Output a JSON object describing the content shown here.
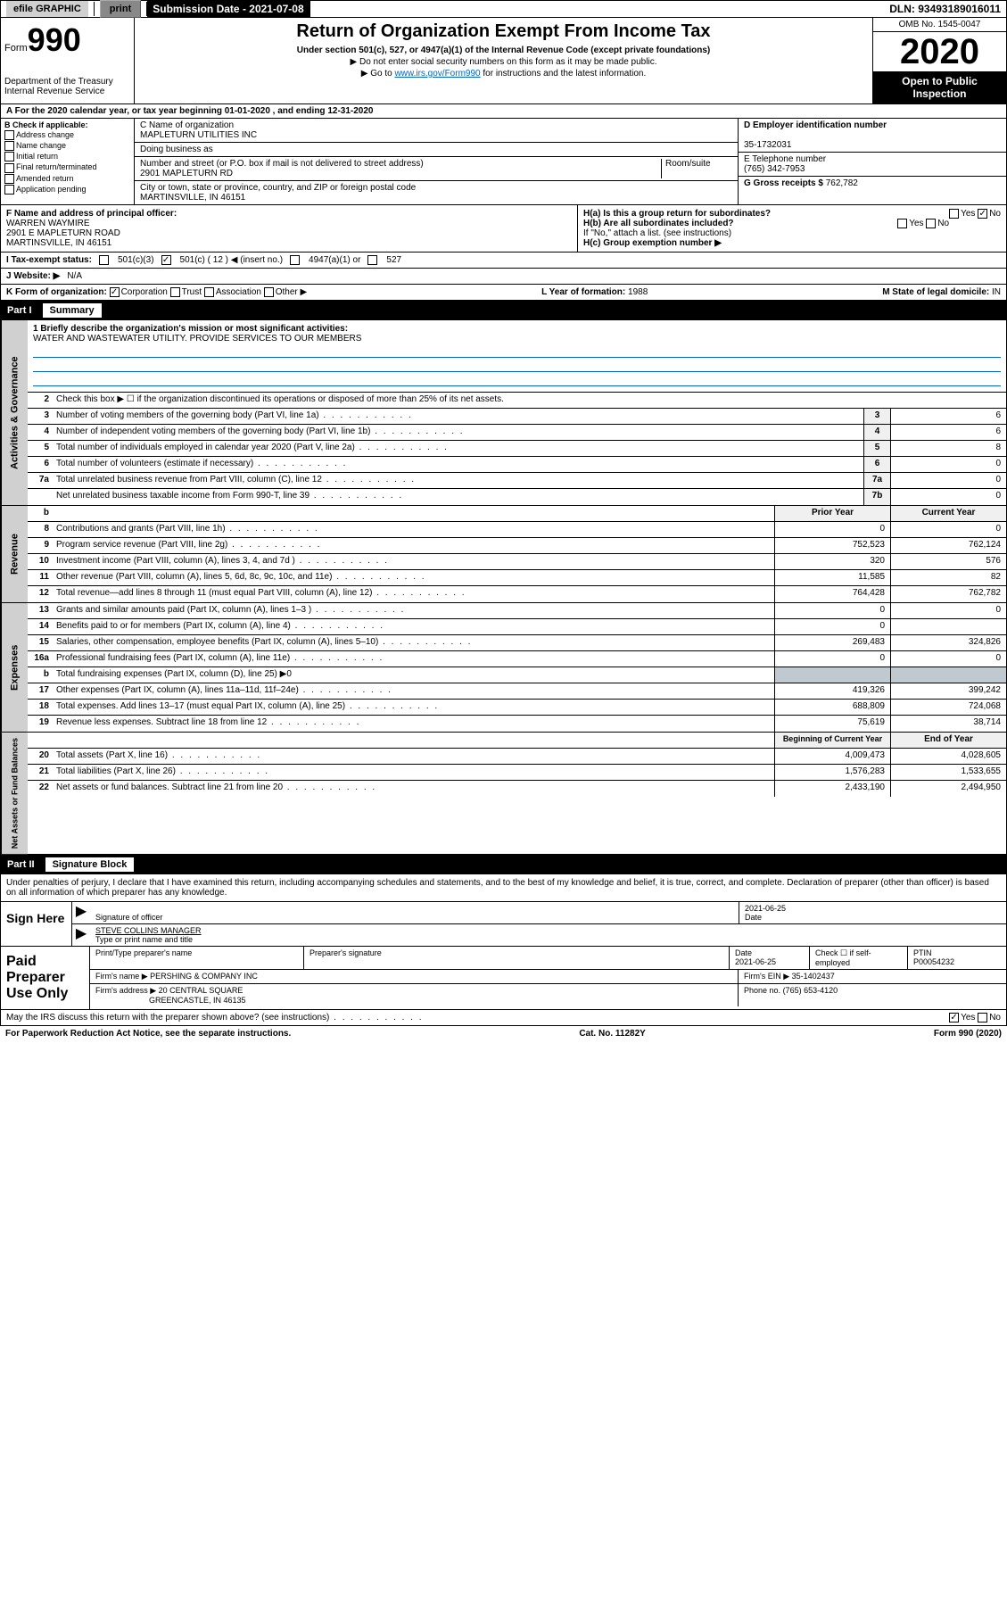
{
  "header": {
    "efile": "efile GRAPHIC",
    "print": "print",
    "submission": "Submission Date - 2021-07-08",
    "dln": "DLN: 93493189016011"
  },
  "form": {
    "label": "Form",
    "number": "990",
    "dept1": "Department of the Treasury",
    "dept2": "Internal Revenue Service",
    "title": "Return of Organization Exempt From Income Tax",
    "subtitle": "Under section 501(c), 527, or 4947(a)(1) of the Internal Revenue Code (except private foundations)",
    "note1": "▶ Do not enter social security numbers on this form as it may be made public.",
    "note2_pre": "▶ Go to ",
    "note2_link": "www.irs.gov/Form990",
    "note2_post": " for instructions and the latest information.",
    "omb": "OMB No. 1545-0047",
    "year": "2020",
    "open": "Open to Public Inspection"
  },
  "a_line": "A For the 2020 calendar year, or tax year beginning 01-01-2020    , and ending 12-31-2020",
  "b": {
    "title": "B Check if applicable:",
    "opts": [
      "Address change",
      "Name change",
      "Initial return",
      "Final return/terminated",
      "Amended return",
      "Application pending"
    ]
  },
  "c": {
    "name_label": "C Name of organization",
    "name": "MAPLETURN UTILITIES INC",
    "dba_label": "Doing business as",
    "dba": "",
    "addr_label": "Number and street (or P.O. box if mail is not delivered to street address)",
    "room_label": "Room/suite",
    "addr": "2901 MAPLETURN RD",
    "city_label": "City or town, state or province, country, and ZIP or foreign postal code",
    "city": "MARTINSVILLE, IN  46151"
  },
  "d": {
    "label": "D Employer identification number",
    "val": "35-1732031"
  },
  "e": {
    "label": "E Telephone number",
    "val": "(765) 342-7953"
  },
  "g": {
    "label": "G Gross receipts $",
    "val": "762,782"
  },
  "f": {
    "label": "F  Name and address of principal officer:",
    "name": "WARREN WAYMIRE",
    "addr1": "2901 E MAPLETURN ROAD",
    "addr2": "MARTINSVILLE, IN  46151"
  },
  "h": {
    "a_label": "H(a)  Is this a group return for subordinates?",
    "a_yes": "Yes",
    "a_no": "No",
    "b_label": "H(b)  Are all subordinates included?",
    "b_note": "If \"No,\" attach a list. (see instructions)",
    "c_label": "H(c)  Group exemption number ▶"
  },
  "i": {
    "label": "I   Tax-exempt status:",
    "opts": [
      "501(c)(3)",
      "501(c) ( 12 ) ◀ (insert no.)",
      "4947(a)(1) or",
      "527"
    ]
  },
  "j": {
    "label": "J   Website: ▶",
    "val": "N/A"
  },
  "k": {
    "label": "K Form of organization:",
    "opts": [
      "Corporation",
      "Trust",
      "Association",
      "Other ▶"
    ],
    "l_label": "L Year of formation:",
    "l_val": "1988",
    "m_label": "M State of legal domicile:",
    "m_val": "IN"
  },
  "part1": {
    "label": "Part I",
    "title": "Summary"
  },
  "gov": {
    "side": "Activities & Governance",
    "l1_label": "1  Briefly describe the organization's mission or most significant activities:",
    "l1_text": "WATER AND WASTEWATER UTILITY. PROVIDE SERVICES TO OUR MEMBERS",
    "l2": "Check this box ▶ ☐  if the organization discontinued its operations or disposed of more than 25% of its net assets.",
    "lines": [
      {
        "n": "3",
        "t": "Number of voting members of the governing body (Part VI, line 1a)",
        "box": "3",
        "v": "6"
      },
      {
        "n": "4",
        "t": "Number of independent voting members of the governing body (Part VI, line 1b)",
        "box": "4",
        "v": "6"
      },
      {
        "n": "5",
        "t": "Total number of individuals employed in calendar year 2020 (Part V, line 2a)",
        "box": "5",
        "v": "8"
      },
      {
        "n": "6",
        "t": "Total number of volunteers (estimate if necessary)",
        "box": "6",
        "v": "0"
      },
      {
        "n": "7a",
        "t": "Total unrelated business revenue from Part VIII, column (C), line 12",
        "box": "7a",
        "v": "0"
      },
      {
        "n": "",
        "t": "Net unrelated business taxable income from Form 990-T, line 39",
        "box": "7b",
        "v": "0"
      }
    ]
  },
  "cols": {
    "prior": "Prior Year",
    "current": "Current Year",
    "beg": "Beginning of Current Year",
    "end": "End of Year"
  },
  "rev": {
    "side": "Revenue",
    "lines": [
      {
        "n": "8",
        "t": "Contributions and grants (Part VIII, line 1h)",
        "p": "0",
        "c": "0"
      },
      {
        "n": "9",
        "t": "Program service revenue (Part VIII, line 2g)",
        "p": "752,523",
        "c": "762,124"
      },
      {
        "n": "10",
        "t": "Investment income (Part VIII, column (A), lines 3, 4, and 7d )",
        "p": "320",
        "c": "576"
      },
      {
        "n": "11",
        "t": "Other revenue (Part VIII, column (A), lines 5, 6d, 8c, 9c, 10c, and 11e)",
        "p": "11,585",
        "c": "82"
      },
      {
        "n": "12",
        "t": "Total revenue—add lines 8 through 11 (must equal Part VIII, column (A), line 12)",
        "p": "764,428",
        "c": "762,782"
      }
    ]
  },
  "exp": {
    "side": "Expenses",
    "lines": [
      {
        "n": "13",
        "t": "Grants and similar amounts paid (Part IX, column (A), lines 1–3 )",
        "p": "0",
        "c": "0"
      },
      {
        "n": "14",
        "t": "Benefits paid to or for members (Part IX, column (A), line 4)",
        "p": "0",
        "c": ""
      },
      {
        "n": "15",
        "t": "Salaries, other compensation, employee benefits (Part IX, column (A), lines 5–10)",
        "p": "269,483",
        "c": "324,826"
      },
      {
        "n": "16a",
        "t": "Professional fundraising fees (Part IX, column (A), line 11e)",
        "p": "0",
        "c": "0"
      },
      {
        "n": "b",
        "t": "Total fundraising expenses (Part IX, column (D), line 25) ▶0",
        "shaded": true
      },
      {
        "n": "17",
        "t": "Other expenses (Part IX, column (A), lines 11a–11d, 11f–24e)",
        "p": "419,326",
        "c": "399,242"
      },
      {
        "n": "18",
        "t": "Total expenses. Add lines 13–17 (must equal Part IX, column (A), line 25)",
        "p": "688,809",
        "c": "724,068"
      },
      {
        "n": "19",
        "t": "Revenue less expenses. Subtract line 18 from line 12",
        "p": "75,619",
        "c": "38,714"
      }
    ]
  },
  "net": {
    "side": "Net Assets or Fund Balances",
    "lines": [
      {
        "n": "20",
        "t": "Total assets (Part X, line 16)",
        "p": "4,009,473",
        "c": "4,028,605"
      },
      {
        "n": "21",
        "t": "Total liabilities (Part X, line 26)",
        "p": "1,576,283",
        "c": "1,533,655"
      },
      {
        "n": "22",
        "t": "Net assets or fund balances. Subtract line 21 from line 20",
        "p": "2,433,190",
        "c": "2,494,950"
      }
    ]
  },
  "part2": {
    "label": "Part II",
    "title": "Signature Block"
  },
  "perjury": "Under penalties of perjury, I declare that I have examined this return, including accompanying schedules and statements, and to the best of my knowledge and belief, it is true, correct, and complete. Declaration of preparer (other than officer) is based on all information of which preparer has any knowledge.",
  "sign": {
    "here": "Sign Here",
    "sig_label": "Signature of officer",
    "date": "2021-06-25",
    "date_label": "Date",
    "name": "STEVE COLLINS MANAGER",
    "name_label": "Type or print name and title"
  },
  "prep": {
    "label": "Paid Preparer Use Only",
    "h1": "Print/Type preparer's name",
    "h2": "Preparer's signature",
    "h3": "Date",
    "h4": "Check ☐ if self-employed",
    "h5": "PTIN",
    "date": "2021-06-25",
    "ptin": "P00054232",
    "firm_label": "Firm's name    ▶",
    "firm": "PERSHING & COMPANY INC",
    "ein_label": "Firm's EIN ▶",
    "ein": "35-1402437",
    "addr_label": "Firm's address ▶",
    "addr1": "20 CENTRAL SQUARE",
    "addr2": "GREENCASTLE, IN  46135",
    "phone_label": "Phone no.",
    "phone": "(765) 653-4120"
  },
  "discuss": {
    "text": "May the IRS discuss this return with the preparer shown above? (see instructions)",
    "yes": "Yes",
    "no": "No"
  },
  "footer": {
    "pra": "For Paperwork Reduction Act Notice, see the separate instructions.",
    "cat": "Cat. No. 11282Y",
    "form": "Form 990 (2020)"
  }
}
